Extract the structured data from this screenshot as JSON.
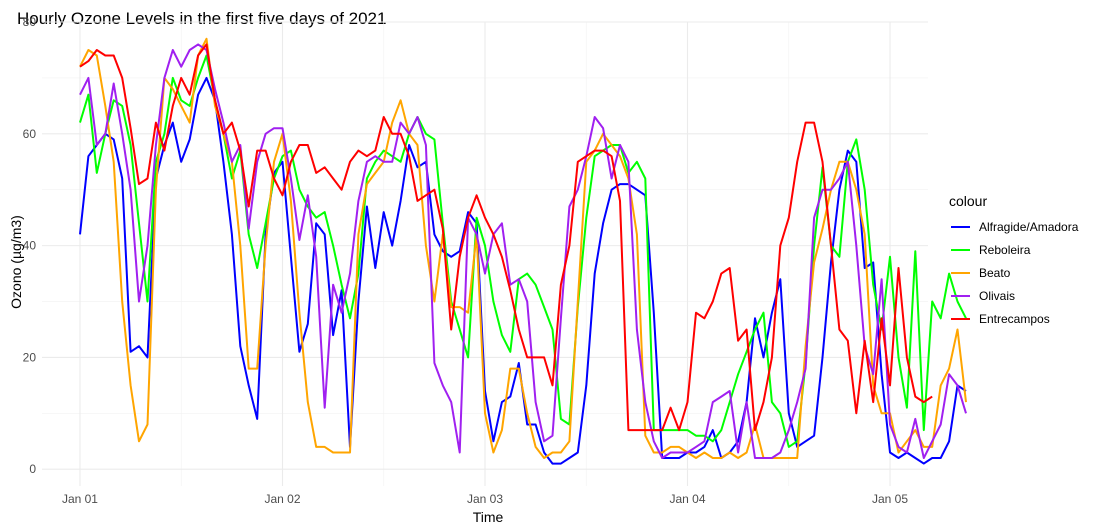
{
  "chart_data": {
    "type": "line",
    "title": "Hourly Ozone Levels in the first five days of 2021",
    "xlabel": "Time",
    "ylabel": "Ozono (µg/m3)",
    "legend_title": "colour",
    "legend_position": "right",
    "grid": true,
    "x_unit": "hours since 2021-01-01 00:00",
    "xlim": [
      -4.5,
      100.5
    ],
    "ylim": [
      -3,
      80
    ],
    "x_ticks": [
      {
        "x": 0,
        "label": "Jan 01"
      },
      {
        "x": 24,
        "label": "Jan 02"
      },
      {
        "x": 48,
        "label": "Jan 03"
      },
      {
        "x": 72,
        "label": "Jan 04"
      },
      {
        "x": 96,
        "label": "Jan 05"
      }
    ],
    "y_ticks": [
      0,
      20,
      40,
      60,
      80
    ],
    "series": [
      {
        "name": "Alfragide/Amadora",
        "color": "#0000ff",
        "values": [
          42,
          56,
          58,
          60,
          59,
          52,
          21,
          22,
          20,
          52,
          58,
          62,
          55,
          59,
          67,
          70,
          66,
          55,
          42,
          22,
          15,
          9,
          42,
          53,
          55,
          38,
          21,
          26,
          44,
          42,
          24,
          32,
          4,
          30,
          47,
          36,
          46,
          40,
          48,
          58,
          54,
          55,
          42,
          39,
          38,
          39,
          46,
          44,
          14,
          5,
          12,
          13,
          19,
          8,
          8,
          3,
          1,
          1,
          2,
          3,
          15,
          35,
          44,
          50,
          51,
          51,
          50,
          49,
          28,
          2,
          2,
          2,
          3,
          3,
          4,
          7,
          2,
          3,
          5,
          12,
          27,
          20,
          28,
          34,
          10,
          4,
          5,
          6,
          20,
          37,
          50,
          57,
          55,
          36,
          37,
          17,
          3,
          2,
          3,
          2,
          1,
          2,
          2,
          5,
          15,
          14
        ]
      },
      {
        "name": "Reboleira",
        "color": "#00ff00",
        "values": [
          62,
          67,
          53,
          60,
          66,
          65,
          58,
          44,
          30,
          55,
          60,
          70,
          66,
          65,
          70,
          74,
          66,
          60,
          52,
          57,
          42,
          36,
          44,
          52,
          56,
          57,
          50,
          47,
          45,
          46,
          40,
          33,
          27,
          35,
          52,
          55,
          57,
          56,
          55,
          60,
          63,
          60,
          59,
          44,
          30,
          25,
          20,
          45,
          40,
          30,
          24,
          21,
          34,
          35,
          33,
          29,
          25,
          9,
          8,
          29,
          45,
          56,
          57,
          58,
          58,
          53,
          55,
          52,
          7,
          7,
          7,
          7,
          7,
          6,
          6,
          5,
          7,
          12,
          17,
          21,
          25,
          28,
          12,
          10,
          4,
          5,
          19,
          40,
          54,
          40,
          38,
          55,
          59,
          50,
          33,
          25,
          38,
          20,
          11,
          39,
          7,
          30,
          27,
          35,
          30,
          27
        ]
      },
      {
        "name": "Beato",
        "color": "#ffa500",
        "values": [
          72,
          75,
          74,
          65,
          55,
          30,
          15,
          5,
          8,
          50,
          70,
          68,
          65,
          62,
          74,
          77,
          65,
          60,
          55,
          40,
          18,
          18,
          40,
          55,
          60,
          48,
          28,
          12,
          4,
          4,
          3,
          3,
          3,
          42,
          51,
          53,
          55,
          62,
          66,
          60,
          58,
          40,
          30,
          42,
          29,
          29,
          28,
          42,
          10,
          3,
          7,
          18,
          18,
          10,
          4,
          2,
          3,
          3,
          5,
          30,
          55,
          57,
          60,
          58,
          56,
          52,
          42,
          6,
          3,
          3,
          4,
          4,
          3,
          2,
          3,
          2,
          2,
          3,
          2,
          3,
          8,
          2,
          2,
          2,
          2,
          2,
          22,
          37,
          43,
          50,
          55,
          55,
          50,
          42,
          15,
          10,
          10,
          3,
          5,
          7,
          4,
          4,
          15,
          18,
          25,
          12
        ]
      },
      {
        "name": "Olivais",
        "color": "#a020f0",
        "values": [
          67,
          70,
          58,
          60,
          69,
          60,
          50,
          30,
          40,
          58,
          70,
          75,
          72,
          75,
          76,
          75,
          68,
          62,
          55,
          58,
          43,
          55,
          60,
          61,
          61,
          52,
          41,
          49,
          38,
          11,
          33,
          28,
          35,
          48,
          55,
          56,
          55,
          55,
          62,
          60,
          63,
          58,
          19,
          15,
          12,
          3,
          45,
          42,
          35,
          42,
          44,
          33,
          34,
          30,
          12,
          5,
          6,
          27,
          47,
          50,
          56,
          63,
          61,
          52,
          58,
          55,
          25,
          12,
          5,
          2,
          3,
          3,
          3,
          4,
          5,
          12,
          13,
          14,
          3,
          12,
          2,
          2,
          2,
          3,
          7,
          12,
          18,
          45,
          50,
          50,
          52,
          55,
          40,
          22,
          17,
          34,
          8,
          4,
          3,
          9,
          2,
          5,
          8,
          17,
          15,
          10
        ]
      },
      {
        "name": "Entrecampos",
        "color": "#ff0000",
        "values": [
          72,
          73,
          75,
          74,
          74,
          70,
          61,
          51,
          52,
          62,
          57,
          65,
          70,
          67,
          74,
          76,
          66,
          60,
          62,
          57,
          47,
          57,
          57,
          52,
          49,
          55,
          58,
          58,
          53,
          54,
          52,
          50,
          55,
          57,
          56,
          57,
          63,
          60,
          60,
          56,
          48,
          49,
          50,
          43,
          25,
          38,
          45,
          49,
          45,
          42,
          38,
          32,
          25,
          20,
          20,
          20,
          15,
          33,
          40,
          55,
          56,
          57,
          57,
          56,
          48,
          7,
          7,
          7,
          7,
          7,
          11,
          7,
          12,
          28,
          27,
          30,
          35,
          36,
          23,
          25,
          7,
          12,
          20,
          40,
          45,
          55,
          62,
          62,
          55,
          40,
          25,
          23,
          10,
          23,
          12,
          27,
          15,
          36,
          20,
          13,
          12,
          13
        ]
      }
    ]
  }
}
